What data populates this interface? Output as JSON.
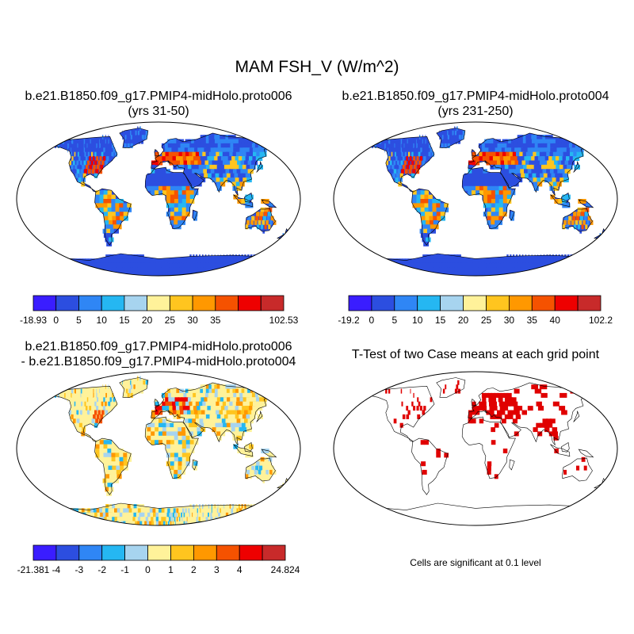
{
  "figure": {
    "title": "MAM FSH_V (W/m^2)"
  },
  "panels": [
    {
      "id": "top-left",
      "title_line1": "b.e21.B1850.f09_g17.PMIP4-midHolo.proto006",
      "title_line2": "(yrs 31-50)",
      "colorbar": {
        "colors": [
          "#3a1dff",
          "#2c4ee0",
          "#2f86f5",
          "#25b7f2",
          "#a7d4ef",
          "#fff29a",
          "#ffc51f",
          "#ff9800",
          "#f55200",
          "#ee0000",
          "#c82a2a"
        ],
        "labels": [
          "-18.93",
          "0",
          "5",
          "10",
          "15",
          "20",
          "25",
          "30",
          "35",
          "",
          "102.53"
        ]
      }
    },
    {
      "id": "top-right",
      "title_line1": "b.e21.B1850.f09_g17.PMIP4-midHolo.proto004",
      "title_line2": "(yrs 231-250)",
      "colorbar": {
        "colors": [
          "#3a1dff",
          "#2c4ee0",
          "#2f86f5",
          "#25b7f2",
          "#a7d4ef",
          "#fff29a",
          "#ffc51f",
          "#ff9800",
          "#f55200",
          "#ee0000",
          "#c82a2a"
        ],
        "labels": [
          "-19.2",
          "0",
          "5",
          "10",
          "15",
          "20",
          "25",
          "30",
          "35",
          "40",
          "102.2"
        ]
      }
    },
    {
      "id": "bottom-left",
      "title_line1": "b.e21.B1850.f09_g17.PMIP4-midHolo.proto006",
      "title_line2": "- b.e21.B1850.f09_g17.PMIP4-midHolo.proto004",
      "colorbar": {
        "colors": [
          "#3a1dff",
          "#2c4ee0",
          "#2f86f5",
          "#25b7f2",
          "#a7d4ef",
          "#fff29a",
          "#ffc51f",
          "#ff9800",
          "#f55200",
          "#ee0000",
          "#c82a2a"
        ],
        "labels": [
          "-21.381",
          "-4",
          "-3",
          "-2",
          "-1",
          "0",
          "1",
          "2",
          "3",
          "4",
          "24.824"
        ]
      }
    },
    {
      "id": "bottom-right",
      "title_line1": "T-Test of two Case means at each grid point",
      "note": "Cells are significant at 0.1 level",
      "significance_color": "#e00000"
    }
  ]
}
